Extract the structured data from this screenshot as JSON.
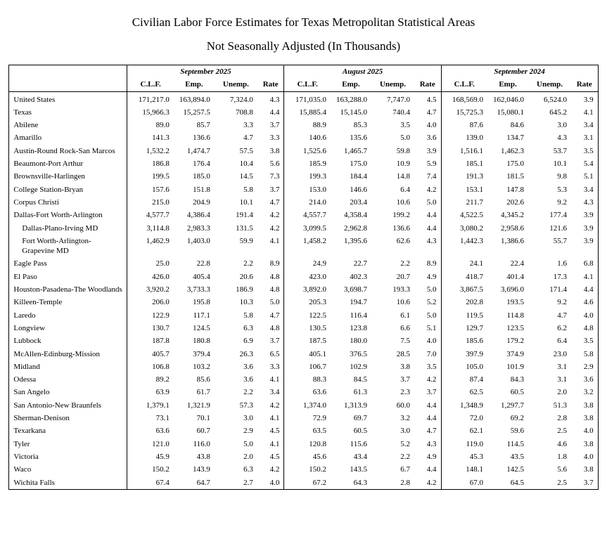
{
  "title": "Civilian Labor Force Estimates for Texas Metropolitan Statistical Areas",
  "subtitle": "Not Seasonally Adjusted (In Thousands)",
  "colors": {
    "background": "#ffffff",
    "text": "#000000",
    "border": "#000000"
  },
  "table": {
    "period_groups": [
      "September 2025",
      "August 2025",
      "September 2024"
    ],
    "sub_headers": [
      "C.L.F.",
      "Emp.",
      "Unemp.",
      "Rate"
    ],
    "rows": [
      {
        "area": "United States",
        "indent": false,
        "values": [
          "171,217.0",
          "163,894.0",
          "7,324.0",
          "4.3",
          "171,035.0",
          "163,288.0",
          "7,747.0",
          "4.5",
          "168,569.0",
          "162,046.0",
          "6,524.0",
          "3.9"
        ]
      },
      {
        "area": "Texas",
        "indent": false,
        "values": [
          "15,966.3",
          "15,257.5",
          "708.8",
          "4.4",
          "15,885.4",
          "15,145.0",
          "740.4",
          "4.7",
          "15,725.3",
          "15,080.1",
          "645.2",
          "4.1"
        ]
      },
      {
        "area": "Abilene",
        "indent": false,
        "values": [
          "89.0",
          "85.7",
          "3.3",
          "3.7",
          "88.9",
          "85.3",
          "3.5",
          "4.0",
          "87.6",
          "84.6",
          "3.0",
          "3.4"
        ]
      },
      {
        "area": "Amarillo",
        "indent": false,
        "values": [
          "141.3",
          "136.6",
          "4.7",
          "3.3",
          "140.6",
          "135.6",
          "5.0",
          "3.6",
          "139.0",
          "134.7",
          "4.3",
          "3.1"
        ]
      },
      {
        "area": "Austin-Round Rock-San Marcos",
        "indent": false,
        "values": [
          "1,532.2",
          "1,474.7",
          "57.5",
          "3.8",
          "1,525.6",
          "1,465.7",
          "59.8",
          "3.9",
          "1,516.1",
          "1,462.3",
          "53.7",
          "3.5"
        ]
      },
      {
        "area": "Beaumont-Port Arthur",
        "indent": false,
        "values": [
          "186.8",
          "176.4",
          "10.4",
          "5.6",
          "185.9",
          "175.0",
          "10.9",
          "5.9",
          "185.1",
          "175.0",
          "10.1",
          "5.4"
        ]
      },
      {
        "area": "Brownsville-Harlingen",
        "indent": false,
        "values": [
          "199.5",
          "185.0",
          "14.5",
          "7.3",
          "199.3",
          "184.4",
          "14.8",
          "7.4",
          "191.3",
          "181.5",
          "9.8",
          "5.1"
        ]
      },
      {
        "area": "College Station-Bryan",
        "indent": false,
        "values": [
          "157.6",
          "151.8",
          "5.8",
          "3.7",
          "153.0",
          "146.6",
          "6.4",
          "4.2",
          "153.1",
          "147.8",
          "5.3",
          "3.4"
        ]
      },
      {
        "area": "Corpus Christi",
        "indent": false,
        "values": [
          "215.0",
          "204.9",
          "10.1",
          "4.7",
          "214.0",
          "203.4",
          "10.6",
          "5.0",
          "211.7",
          "202.6",
          "9.2",
          "4.3"
        ]
      },
      {
        "area": "Dallas-Fort Worth-Arlington",
        "indent": false,
        "values": [
          "4,577.7",
          "4,386.4",
          "191.4",
          "4.2",
          "4,557.7",
          "4,358.4",
          "199.2",
          "4.4",
          "4,522.5",
          "4,345.2",
          "177.4",
          "3.9"
        ]
      },
      {
        "area": "Dallas-Plano-Irving MD",
        "indent": true,
        "values": [
          "3,114.8",
          "2,983.3",
          "131.5",
          "4.2",
          "3,099.5",
          "2,962.8",
          "136.6",
          "4.4",
          "3,080.2",
          "2,958.6",
          "121.6",
          "3.9"
        ]
      },
      {
        "area": "Fort Worth-Arlington-Grapevine MD",
        "indent": true,
        "values": [
          "1,462.9",
          "1,403.0",
          "59.9",
          "4.1",
          "1,458.2",
          "1,395.6",
          "62.6",
          "4.3",
          "1,442.3",
          "1,386.6",
          "55.7",
          "3.9"
        ]
      },
      {
        "area": "Eagle Pass",
        "indent": false,
        "values": [
          "25.0",
          "22.8",
          "2.2",
          "8.9",
          "24.9",
          "22.7",
          "2.2",
          "8.9",
          "24.1",
          "22.4",
          "1.6",
          "6.8"
        ]
      },
      {
        "area": "El Paso",
        "indent": false,
        "values": [
          "426.0",
          "405.4",
          "20.6",
          "4.8",
          "423.0",
          "402.3",
          "20.7",
          "4.9",
          "418.7",
          "401.4",
          "17.3",
          "4.1"
        ]
      },
      {
        "area": "Houston-Pasadena-The Woodlands",
        "indent": false,
        "values": [
          "3,920.2",
          "3,733.3",
          "186.9",
          "4.8",
          "3,892.0",
          "3,698.7",
          "193.3",
          "5.0",
          "3,867.5",
          "3,696.0",
          "171.4",
          "4.4"
        ]
      },
      {
        "area": "Killeen-Temple",
        "indent": false,
        "values": [
          "206.0",
          "195.8",
          "10.3",
          "5.0",
          "205.3",
          "194.7",
          "10.6",
          "5.2",
          "202.8",
          "193.5",
          "9.2",
          "4.6"
        ]
      },
      {
        "area": "Laredo",
        "indent": false,
        "values": [
          "122.9",
          "117.1",
          "5.8",
          "4.7",
          "122.5",
          "116.4",
          "6.1",
          "5.0",
          "119.5",
          "114.8",
          "4.7",
          "4.0"
        ]
      },
      {
        "area": "Longview",
        "indent": false,
        "values": [
          "130.7",
          "124.5",
          "6.3",
          "4.8",
          "130.5",
          "123.8",
          "6.6",
          "5.1",
          "129.7",
          "123.5",
          "6.2",
          "4.8"
        ]
      },
      {
        "area": "Lubbock",
        "indent": false,
        "values": [
          "187.8",
          "180.8",
          "6.9",
          "3.7",
          "187.5",
          "180.0",
          "7.5",
          "4.0",
          "185.6",
          "179.2",
          "6.4",
          "3.5"
        ]
      },
      {
        "area": "McAllen-Edinburg-Mission",
        "indent": false,
        "values": [
          "405.7",
          "379.4",
          "26.3",
          "6.5",
          "405.1",
          "376.5",
          "28.5",
          "7.0",
          "397.9",
          "374.9",
          "23.0",
          "5.8"
        ]
      },
      {
        "area": "Midland",
        "indent": false,
        "values": [
          "106.8",
          "103.2",
          "3.6",
          "3.3",
          "106.7",
          "102.9",
          "3.8",
          "3.5",
          "105.0",
          "101.9",
          "3.1",
          "2.9"
        ]
      },
      {
        "area": "Odessa",
        "indent": false,
        "values": [
          "89.2",
          "85.6",
          "3.6",
          "4.1",
          "88.3",
          "84.5",
          "3.7",
          "4.2",
          "87.4",
          "84.3",
          "3.1",
          "3.6"
        ]
      },
      {
        "area": "San Angelo",
        "indent": false,
        "values": [
          "63.9",
          "61.7",
          "2.2",
          "3.4",
          "63.6",
          "61.3",
          "2.3",
          "3.7",
          "62.5",
          "60.5",
          "2.0",
          "3.2"
        ]
      },
      {
        "area": "San Antonio-New Braunfels",
        "indent": false,
        "values": [
          "1,379.1",
          "1,321.9",
          "57.3",
          "4.2",
          "1,374.0",
          "1,313.9",
          "60.0",
          "4.4",
          "1,348.9",
          "1,297.7",
          "51.3",
          "3.8"
        ]
      },
      {
        "area": "Sherman-Denison",
        "indent": false,
        "values": [
          "73.1",
          "70.1",
          "3.0",
          "4.1",
          "72.9",
          "69.7",
          "3.2",
          "4.4",
          "72.0",
          "69.2",
          "2.8",
          "3.8"
        ]
      },
      {
        "area": "Texarkana",
        "indent": false,
        "values": [
          "63.6",
          "60.7",
          "2.9",
          "4.5",
          "63.5",
          "60.5",
          "3.0",
          "4.7",
          "62.1",
          "59.6",
          "2.5",
          "4.0"
        ]
      },
      {
        "area": "Tyler",
        "indent": false,
        "values": [
          "121.0",
          "116.0",
          "5.0",
          "4.1",
          "120.8",
          "115.6",
          "5.2",
          "4.3",
          "119.0",
          "114.5",
          "4.6",
          "3.8"
        ]
      },
      {
        "area": "Victoria",
        "indent": false,
        "values": [
          "45.9",
          "43.8",
          "2.0",
          "4.5",
          "45.6",
          "43.4",
          "2.2",
          "4.9",
          "45.3",
          "43.5",
          "1.8",
          "4.0"
        ]
      },
      {
        "area": "Waco",
        "indent": false,
        "values": [
          "150.2",
          "143.9",
          "6.3",
          "4.2",
          "150.2",
          "143.5",
          "6.7",
          "4.4",
          "148.1",
          "142.5",
          "5.6",
          "3.8"
        ]
      },
      {
        "area": "Wichita Falls",
        "indent": false,
        "values": [
          "67.4",
          "64.7",
          "2.7",
          "4.0",
          "67.2",
          "64.3",
          "2.8",
          "4.2",
          "67.0",
          "64.5",
          "2.5",
          "3.7"
        ]
      }
    ]
  }
}
